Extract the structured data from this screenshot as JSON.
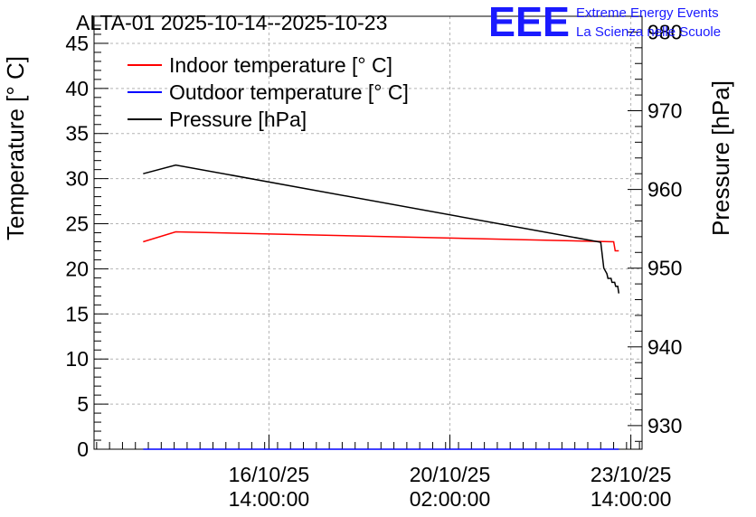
{
  "header": {
    "title": "ALTA-01 2025-10-14--2025-10-23",
    "logo_text": "EEE",
    "logo_line1": "Extreme Energy Events",
    "logo_line2": "La Scienza nelle Scuole"
  },
  "colors": {
    "indoor": "#ff0000",
    "outdoor": "#0000ff",
    "pressure": "#000000",
    "logo": "#1a1aff",
    "grid": "#b4b4b4"
  },
  "chart_data": {
    "type": "line",
    "title": "ALTA-01 2025-10-14--2025-10-23",
    "ylabel": "Temperature [° C]",
    "y2label": "Pressure [hPa]",
    "xlabel": "",
    "x_unit": "days since 2025-10-14 00:00",
    "xlim": [
      -0.8,
      9.8
    ],
    "ylim": [
      0,
      48
    ],
    "y2lim": [
      927,
      982
    ],
    "grid": true,
    "legend_position": "top-left",
    "x_ticks": [
      {
        "value": 2.583,
        "line1": "16/10/25",
        "line2": "14:00:00"
      },
      {
        "value": 6.083,
        "line1": "20/10/25",
        "line2": "02:00:00"
      },
      {
        "value": 9.583,
        "line1": "23/10/25",
        "line2": "14:00:00"
      }
    ],
    "y_ticks": [
      0,
      5,
      10,
      15,
      20,
      25,
      30,
      35,
      40,
      45
    ],
    "y2_ticks": [
      930,
      940,
      950,
      960,
      970,
      980
    ],
    "series": [
      {
        "name": "Indoor temperature [° C]",
        "axis": "left",
        "x": [
          0.15,
          0.78,
          9.25,
          9.28,
          9.35
        ],
        "y": [
          23.0,
          24.1,
          23.0,
          22.0,
          22.0
        ]
      },
      {
        "name": "Outdoor temperature [° C]",
        "axis": "left",
        "x": [
          0.15,
          9.35
        ],
        "y": [
          0.0,
          0.0
        ]
      },
      {
        "name": "Pressure [hPa]",
        "axis": "right",
        "x": [
          0.15,
          0.78,
          9.0,
          9.06,
          9.12,
          9.14,
          9.2,
          9.22,
          9.27,
          9.29,
          9.33,
          9.35
        ],
        "y": [
          962.0,
          963.1,
          953.3,
          950.0,
          949.3,
          948.7,
          948.7,
          948.2,
          948.2,
          947.7,
          947.7,
          946.8
        ]
      }
    ]
  }
}
